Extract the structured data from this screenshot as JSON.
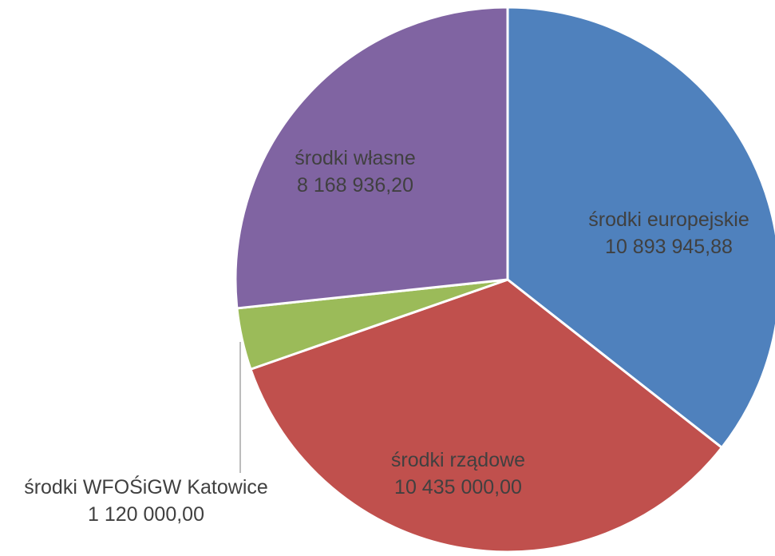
{
  "chart_data": {
    "type": "pie",
    "title": "",
    "slices": [
      {
        "label": "środki europejskie",
        "value_text": "10 893 945,88",
        "value": 10893945.88,
        "color": "#4F81BD"
      },
      {
        "label": "środki rządowe",
        "value_text": "10 435 000,00",
        "value": 10435000.0,
        "color": "#C0504D"
      },
      {
        "label": "środki WFOŚiGW Katowice",
        "value_text": "1 120 000,00",
        "value": 1120000.0,
        "color": "#9BBB59"
      },
      {
        "label": "środki własne",
        "value_text": "8 168 936,20",
        "value": 8168936.2,
        "color": "#8064A2"
      }
    ],
    "start_angle": "top",
    "direction": "clockwise",
    "legend": "none",
    "data_labels": "category and value"
  }
}
